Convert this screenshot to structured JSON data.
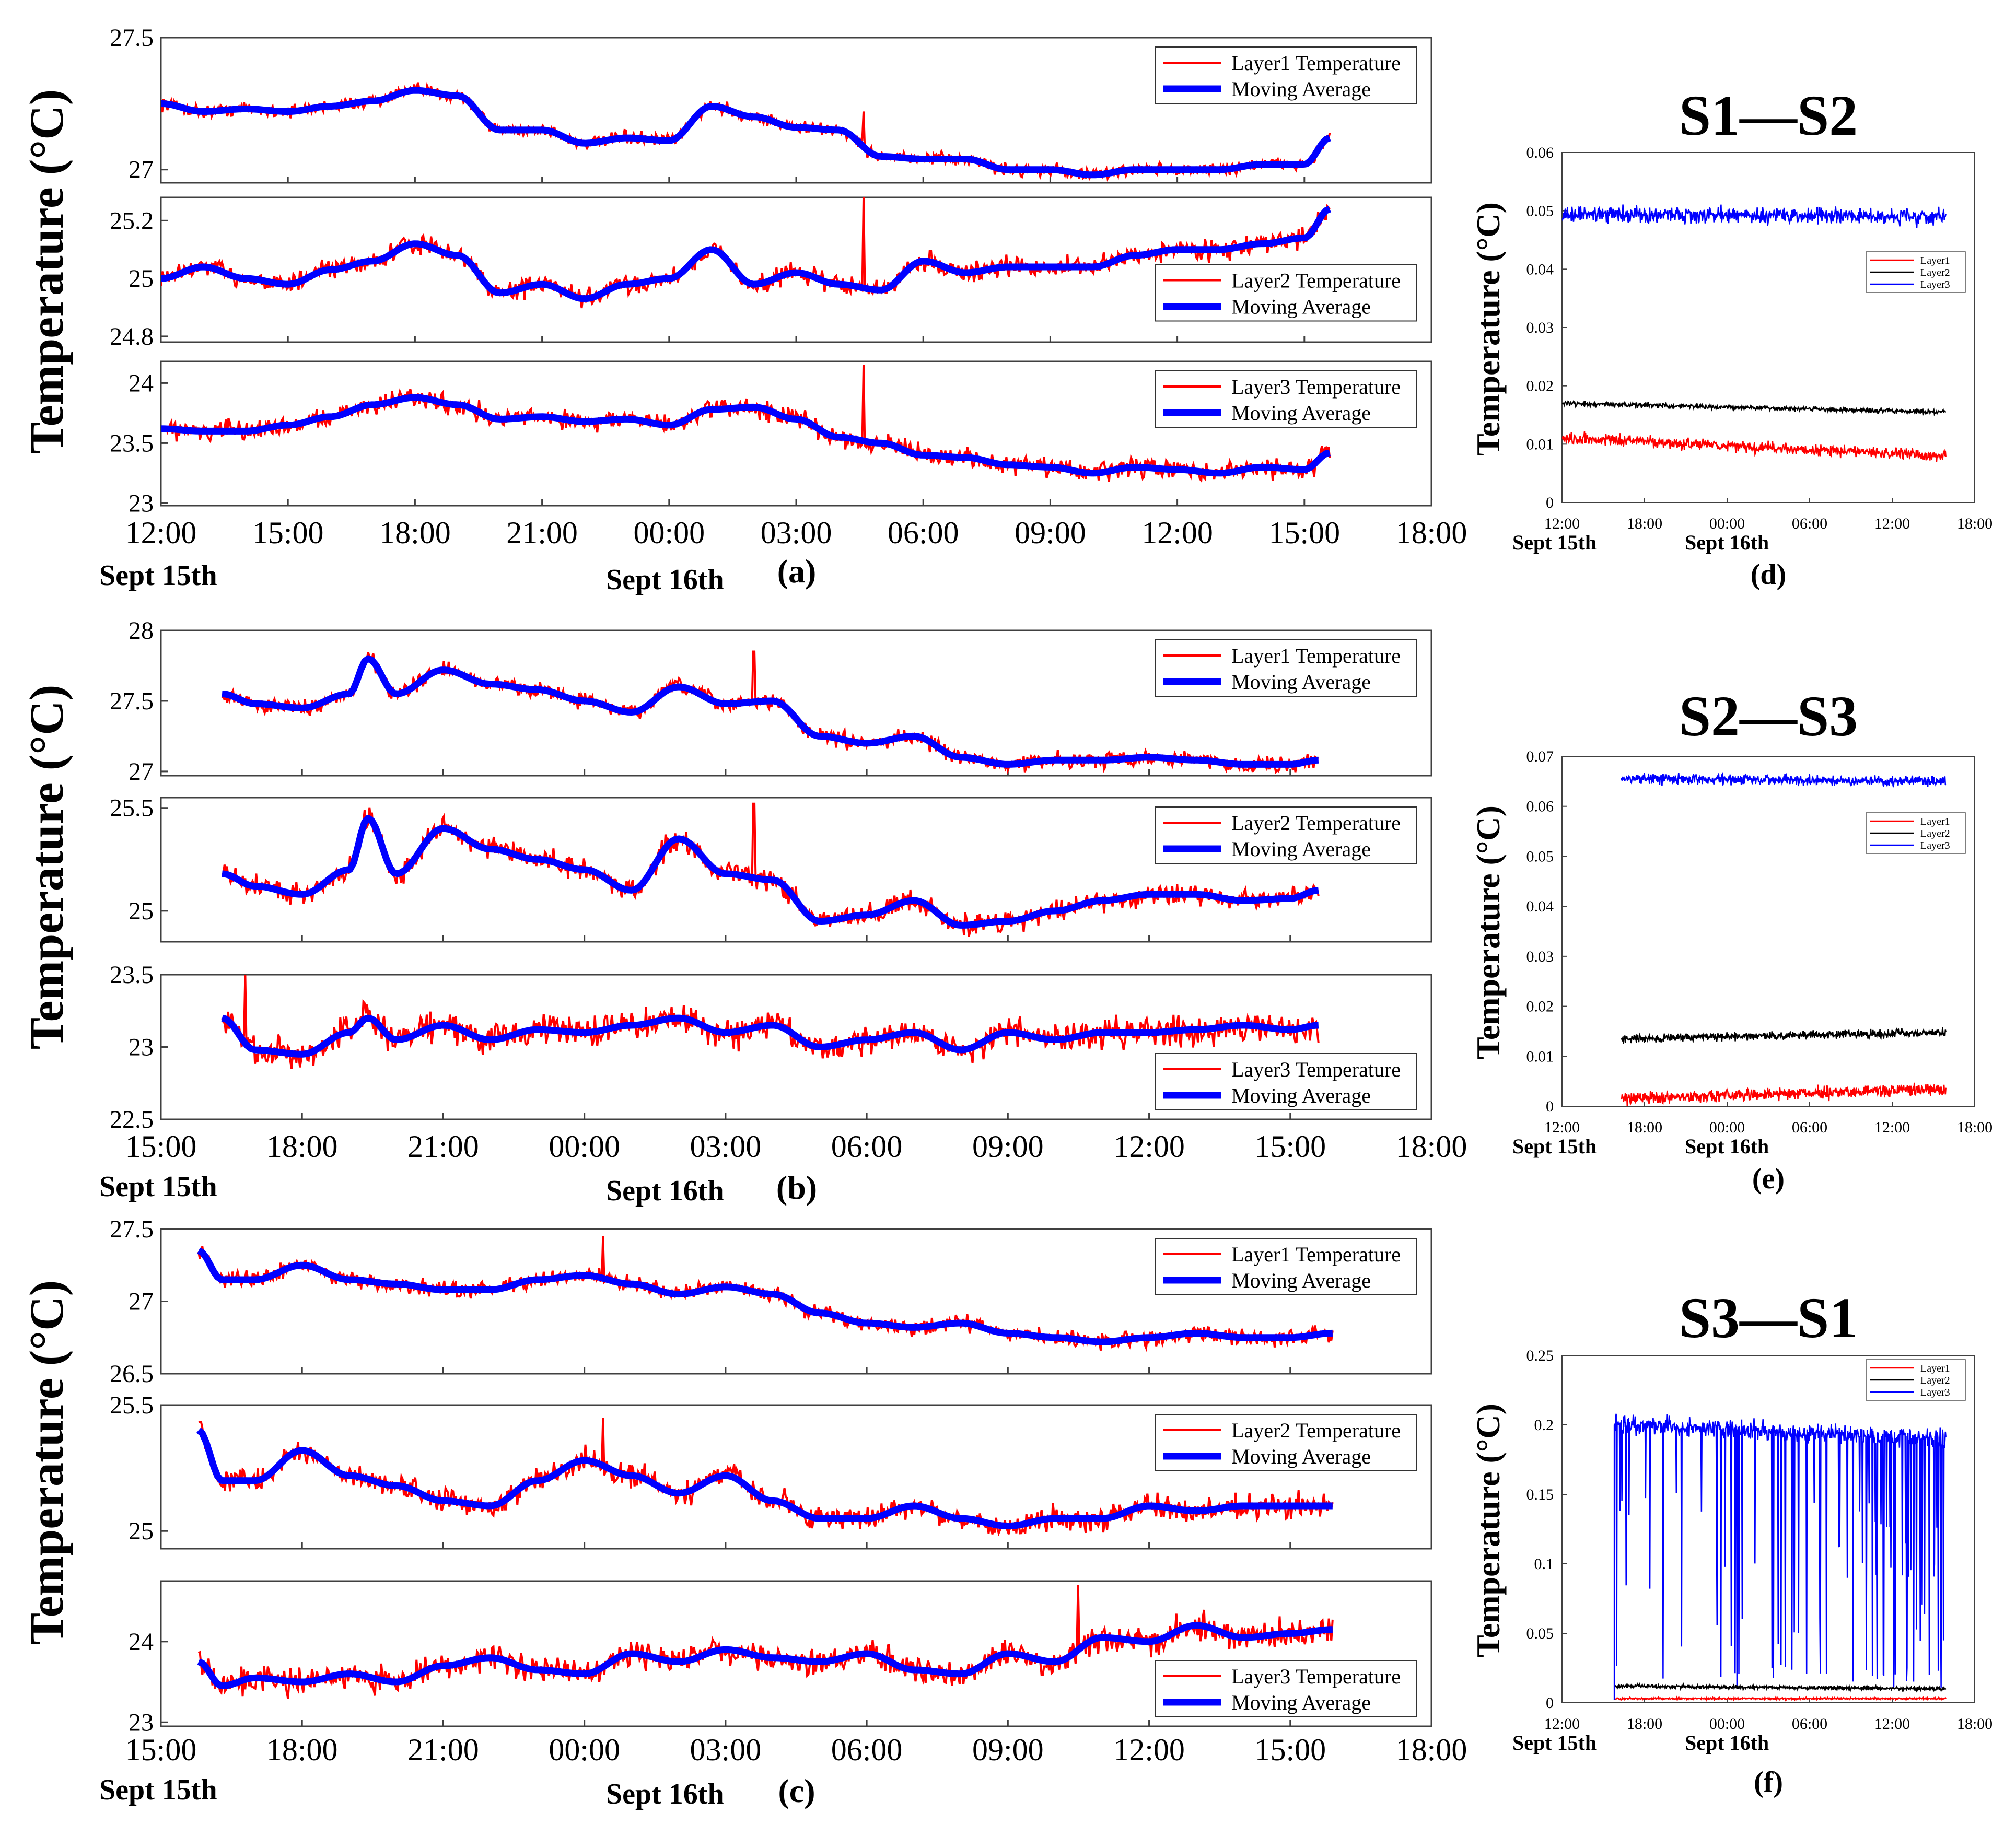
{
  "colors": {
    "raw": "#ff0000",
    "avg": "#0000ff",
    "layer2": "#000000",
    "axis": "#404040"
  },
  "left_panels": [
    {
      "id": "a",
      "caption": "(a)",
      "ylabel": "Temperature (°C)",
      "date_start": "Sept 15th",
      "date_mid": "Sept 16th",
      "xticks": [
        "12:00",
        "15:00",
        "18:00",
        "21:00",
        "00:00",
        "03:00",
        "06:00",
        "09:00",
        "12:00",
        "15:00",
        "18:00"
      ],
      "xdomain": [
        12,
        42
      ],
      "data_span": [
        12,
        39.6
      ],
      "subplots": [
        {
          "legend_raw": "Layer1 Temperature",
          "legend_avg": "Moving Average",
          "legend_pos": "top-right",
          "ylim": [
            26.95,
            27.5
          ],
          "yticks": [
            "27.5",
            "27"
          ],
          "ytick_values": [
            27.5,
            27.0
          ],
          "avg_x": [
            12,
            13,
            14,
            15,
            16,
            17,
            18,
            19,
            20,
            21,
            22,
            23,
            24,
            25,
            26,
            27,
            28,
            29,
            30,
            31,
            32,
            33,
            34,
            35,
            36,
            37,
            38,
            39,
            39.6
          ],
          "avg_y": [
            27.25,
            27.22,
            27.23,
            27.22,
            27.24,
            27.26,
            27.3,
            27.28,
            27.15,
            27.15,
            27.1,
            27.12,
            27.11,
            27.24,
            27.2,
            27.16,
            27.15,
            27.05,
            27.04,
            27.04,
            27.0,
            27.0,
            26.98,
            27.0,
            27.0,
            27.0,
            27.02,
            27.02,
            27.12
          ],
          "noise": 0.035,
          "spike_x": 28.6,
          "spike_y": 27.22
        },
        {
          "legend_raw": "Layer2 Temperature",
          "legend_avg": "Moving Average",
          "legend_pos": "center-right",
          "ylim": [
            24.78,
            25.28
          ],
          "yticks": [
            "25.2",
            "25",
            "24.8"
          ],
          "ytick_values": [
            25.2,
            25.0,
            24.8
          ],
          "avg_x": [
            12,
            13,
            14,
            15,
            16,
            17,
            18,
            19,
            20,
            21,
            22,
            23,
            24,
            25,
            26,
            27,
            28,
            29,
            30,
            31,
            32,
            33,
            34,
            35,
            36,
            37,
            38,
            39,
            39.6
          ],
          "avg_y": [
            25.0,
            25.04,
            25.0,
            24.98,
            25.03,
            25.06,
            25.12,
            25.08,
            24.95,
            24.98,
            24.93,
            24.98,
            25.0,
            25.1,
            24.98,
            25.02,
            24.98,
            24.96,
            25.06,
            25.02,
            25.04,
            25.04,
            25.04,
            25.08,
            25.1,
            25.1,
            25.12,
            25.14,
            25.24
          ],
          "noise": 0.05,
          "spike_x": 28.6,
          "spike_y": 25.28
        },
        {
          "legend_raw": "Layer3 Temperature",
          "legend_avg": "Moving Average",
          "legend_pos": "top-right",
          "ylim": [
            22.98,
            24.18
          ],
          "yticks": [
            "24",
            "23.5",
            "23"
          ],
          "ytick_values": [
            24.0,
            23.5,
            23.0
          ],
          "avg_x": [
            12,
            13,
            14,
            15,
            16,
            17,
            18,
            19,
            20,
            21,
            22,
            23,
            24,
            25,
            26,
            27,
            28,
            29,
            30,
            31,
            32,
            33,
            34,
            35,
            36,
            37,
            38,
            39,
            39.6
          ],
          "avg_y": [
            23.62,
            23.6,
            23.6,
            23.65,
            23.72,
            23.82,
            23.88,
            23.82,
            23.7,
            23.72,
            23.68,
            23.7,
            23.65,
            23.78,
            23.8,
            23.7,
            23.55,
            23.5,
            23.4,
            23.38,
            23.32,
            23.3,
            23.25,
            23.3,
            23.28,
            23.25,
            23.3,
            23.28,
            23.42
          ],
          "noise": 0.12,
          "spike_x": 28.6,
          "spike_y": 24.15
        }
      ]
    },
    {
      "id": "b",
      "caption": "(b)",
      "ylabel": "Temperature (°C)",
      "date_start": "Sept 15th",
      "date_mid": "Sept 16th",
      "xticks": [
        "15:00",
        "18:00",
        "21:00",
        "00:00",
        "03:00",
        "06:00",
        "09:00",
        "12:00",
        "15:00",
        "18:00"
      ],
      "xdomain": [
        15,
        42
      ],
      "data_span": [
        16.3,
        39.6
      ],
      "subplots": [
        {
          "legend_raw": "Layer1 Temperature",
          "legend_avg": "Moving Average",
          "legend_pos": "top-right",
          "ylim": [
            26.97,
            28.0
          ],
          "yticks": [
            "28",
            "27.5",
            "27"
          ],
          "ytick_values": [
            28.0,
            27.5,
            27.0
          ],
          "avg_x": [
            16.3,
            17,
            18,
            19,
            19.4,
            20,
            21,
            22,
            23,
            24,
            25,
            26,
            27,
            28,
            29,
            30,
            31,
            32,
            33,
            34,
            35,
            36,
            37,
            38,
            39,
            39.6
          ],
          "avg_y": [
            27.55,
            27.48,
            27.45,
            27.55,
            27.8,
            27.55,
            27.72,
            27.62,
            27.58,
            27.5,
            27.42,
            27.6,
            27.48,
            27.5,
            27.25,
            27.2,
            27.25,
            27.1,
            27.05,
            27.08,
            27.08,
            27.1,
            27.08,
            27.05,
            27.05,
            27.08
          ],
          "noise": 0.08,
          "spike_x": 27.6,
          "spike_y": 27.85
        },
        {
          "legend_raw": "Layer2 Temperature",
          "legend_avg": "Moving Average",
          "legend_pos": "top-right",
          "ylim": [
            24.85,
            25.55
          ],
          "yticks": [
            "25.5",
            "25"
          ],
          "ytick_values": [
            25.5,
            25.0
          ],
          "avg_x": [
            16.3,
            17,
            18,
            19,
            19.4,
            20,
            21,
            22,
            23,
            24,
            25,
            26,
            27,
            28,
            29,
            30,
            31,
            32,
            33,
            34,
            35,
            36,
            37,
            38,
            39,
            39.6
          ],
          "avg_y": [
            25.18,
            25.12,
            25.08,
            25.2,
            25.45,
            25.18,
            25.4,
            25.3,
            25.25,
            25.2,
            25.1,
            25.35,
            25.18,
            25.15,
            24.95,
            24.98,
            25.05,
            24.93,
            24.95,
            25.0,
            25.05,
            25.08,
            25.08,
            25.05,
            25.06,
            25.1
          ],
          "noise": 0.08,
          "spike_x": 27.6,
          "spike_y": 25.52
        },
        {
          "legend_raw": "Layer3 Temperature",
          "legend_avg": "Moving Average",
          "legend_pos": "bottom-right",
          "ylim": [
            22.5,
            23.5
          ],
          "yticks": [
            "23.5",
            "23",
            "22.5"
          ],
          "ytick_values": [
            23.5,
            23.0,
            22.5
          ],
          "avg_x": [
            16.3,
            17,
            18,
            19,
            19.4,
            20,
            21,
            22,
            23,
            24,
            25,
            26,
            27,
            28,
            29,
            30,
            31,
            32,
            33,
            34,
            35,
            36,
            37,
            38,
            39,
            39.6
          ],
          "avg_y": [
            23.2,
            22.98,
            22.95,
            23.1,
            23.2,
            23.05,
            23.15,
            23.05,
            23.12,
            23.1,
            23.15,
            23.2,
            23.1,
            23.15,
            23.0,
            23.05,
            23.1,
            22.98,
            23.1,
            23.05,
            23.1,
            23.1,
            23.12,
            23.15,
            23.12,
            23.15
          ],
          "noise": 0.15,
          "spike_x": 16.8,
          "spike_y": 23.5
        }
      ]
    },
    {
      "id": "c",
      "caption": "(c)",
      "ylabel": "Temperature (°C)",
      "date_start": "Sept 15th",
      "date_mid": "Sept 16th",
      "xticks": [
        "15:00",
        "18:00",
        "21:00",
        "00:00",
        "03:00",
        "06:00",
        "09:00",
        "12:00",
        "15:00",
        "18:00"
      ],
      "xdomain": [
        15,
        42
      ],
      "data_span": [
        15.8,
        39.9
      ],
      "subplots": [
        {
          "legend_raw": "Layer1 Temperature",
          "legend_avg": "Moving Average",
          "legend_pos": "top-right",
          "ylim": [
            26.5,
            27.5
          ],
          "yticks": [
            "27.5",
            "27",
            "26.5"
          ],
          "ytick_values": [
            27.5,
            27.0,
            26.5
          ],
          "avg_x": [
            15.8,
            16.3,
            17,
            18,
            19,
            20,
            21,
            22,
            23,
            24,
            25,
            26,
            27,
            28,
            29,
            30,
            31,
            32,
            33,
            34,
            35,
            36,
            37,
            38,
            39,
            39.9
          ],
          "avg_y": [
            27.35,
            27.15,
            27.15,
            27.25,
            27.15,
            27.12,
            27.08,
            27.08,
            27.15,
            27.18,
            27.12,
            27.05,
            27.1,
            27.05,
            26.92,
            26.85,
            26.82,
            26.85,
            26.78,
            26.75,
            26.72,
            26.75,
            26.78,
            26.75,
            26.75,
            26.78
          ],
          "noise": 0.08,
          "spike_x": 24.4,
          "spike_y": 27.45
        },
        {
          "legend_raw": "Layer2 Temperature",
          "legend_avg": "Moving Average",
          "legend_pos": "top-right",
          "ylim": [
            24.93,
            25.5
          ],
          "yticks": [
            "25.5",
            "25"
          ],
          "ytick_values": [
            25.5,
            25.0
          ],
          "avg_x": [
            15.8,
            16.3,
            17,
            18,
            19,
            20,
            21,
            22,
            23,
            24,
            25,
            26,
            27,
            28,
            29,
            30,
            31,
            32,
            33,
            34,
            35,
            36,
            37,
            38,
            39,
            39.9
          ],
          "avg_y": [
            25.4,
            25.2,
            25.2,
            25.32,
            25.22,
            25.18,
            25.12,
            25.1,
            25.2,
            25.28,
            25.22,
            25.15,
            25.22,
            25.12,
            25.05,
            25.05,
            25.1,
            25.05,
            25.02,
            25.05,
            25.05,
            25.1,
            25.08,
            25.1,
            25.1,
            25.1
          ],
          "noise": 0.07,
          "spike_x": 24.4,
          "spike_y": 25.45
        },
        {
          "legend_raw": "Layer3 Temperature",
          "legend_avg": "Moving Average",
          "legend_pos": "bottom-right",
          "ylim": [
            22.95,
            24.75
          ],
          "yticks": [
            "24",
            "23"
          ],
          "ytick_values": [
            24.0,
            23.0
          ],
          "avg_x": [
            15.8,
            16.3,
            17,
            18,
            19,
            20,
            21,
            22,
            23,
            24,
            25,
            26,
            27,
            28,
            29,
            30,
            31,
            32,
            33,
            34,
            35,
            36,
            37,
            38,
            39,
            39.9
          ],
          "avg_y": [
            23.75,
            23.45,
            23.55,
            23.5,
            23.6,
            23.5,
            23.7,
            23.8,
            23.65,
            23.6,
            23.85,
            23.75,
            23.9,
            23.8,
            23.75,
            23.85,
            23.65,
            23.6,
            23.85,
            23.75,
            24.05,
            24.0,
            24.2,
            24.05,
            24.1,
            24.15
          ],
          "noise": 0.25,
          "spike_x": 34.5,
          "spike_y": 24.7
        }
      ]
    }
  ],
  "right_panels": [
    {
      "id": "d",
      "title": "S1—S2",
      "caption": "(d)",
      "ylabel": "Temperature (°C)",
      "date_start": "Sept 15th",
      "date_mid": "Sept 16th",
      "ylim": [
        0,
        0.06
      ],
      "yticks": [
        "0.06",
        "0.05",
        "0.04",
        "0.03",
        "0.02",
        "0.01",
        "0"
      ],
      "ytick_values": [
        0.06,
        0.05,
        0.04,
        0.03,
        0.02,
        0.01,
        0
      ],
      "xticks": [
        "12:00",
        "18:00",
        "00:00",
        "06:00",
        "12:00",
        "18:00"
      ],
      "xdomain": [
        12,
        42
      ],
      "data_span": [
        12,
        39.9
      ],
      "legend": [
        "Layer1",
        "Layer2",
        "Layer3"
      ],
      "series": [
        {
          "name": "Layer1",
          "start": 0.011,
          "end": 0.008,
          "noise": 0.0015,
          "dips": 0
        },
        {
          "name": "Layer2",
          "start": 0.017,
          "end": 0.0155,
          "noise": 0.0006,
          "dips": 0
        },
        {
          "name": "Layer3",
          "start": 0.0495,
          "end": 0.049,
          "noise": 0.002,
          "dips": 0
        }
      ]
    },
    {
      "id": "e",
      "title": "S2—S3",
      "caption": "(e)",
      "ylabel": "Temperature (°C)",
      "date_start": "Sept 15th",
      "date_mid": "Sept 16th",
      "ylim": [
        0,
        0.07
      ],
      "yticks": [
        "0.07",
        "0.06",
        "0.05",
        "0.04",
        "0.03",
        "0.02",
        "0.01",
        "0"
      ],
      "ytick_values": [
        0.07,
        0.06,
        0.05,
        0.04,
        0.03,
        0.02,
        0.01,
        0
      ],
      "xticks": [
        "12:00",
        "18:00",
        "00:00",
        "06:00",
        "12:00",
        "18:00"
      ],
      "xdomain": [
        12,
        42
      ],
      "data_span": [
        16.3,
        39.9
      ],
      "legend": [
        "Layer1",
        "Layer2",
        "Layer3"
      ],
      "series": [
        {
          "name": "Layer1",
          "start": 0.0015,
          "end": 0.0035,
          "noise": 0.0018,
          "dips": 0
        },
        {
          "name": "Layer2",
          "start": 0.0135,
          "end": 0.0148,
          "noise": 0.0012,
          "dips": 0
        },
        {
          "name": "Layer3",
          "start": 0.0655,
          "end": 0.065,
          "noise": 0.0015,
          "dips": 0
        }
      ]
    },
    {
      "id": "f",
      "title": "S3—S1",
      "caption": "(f)",
      "ylabel": "Temperature (°C)",
      "date_start": "Sept 15th",
      "date_mid": "Sept 16th",
      "ylim": [
        0,
        0.25
      ],
      "yticks": [
        "0.25",
        "0.2",
        "0.15",
        "0.1",
        "0.05",
        "0"
      ],
      "ytick_values": [
        0.25,
        0.2,
        0.15,
        0.1,
        0.05,
        0
      ],
      "xticks": [
        "12:00",
        "18:00",
        "00:00",
        "06:00",
        "12:00",
        "18:00"
      ],
      "xdomain": [
        12,
        42
      ],
      "data_span": [
        15.8,
        39.9
      ],
      "legend": [
        "Layer1",
        "Layer2",
        "Layer3"
      ],
      "series": [
        {
          "name": "Layer1",
          "start": 0.003,
          "end": 0.003,
          "noise": 0.001,
          "dips": 0
        },
        {
          "name": "Layer2",
          "start": 0.012,
          "end": 0.01,
          "noise": 0.002,
          "dips": 0
        },
        {
          "name": "Layer3",
          "start": 0.2,
          "end": 0.19,
          "noise": 0.01,
          "dips": 1
        }
      ]
    }
  ]
}
